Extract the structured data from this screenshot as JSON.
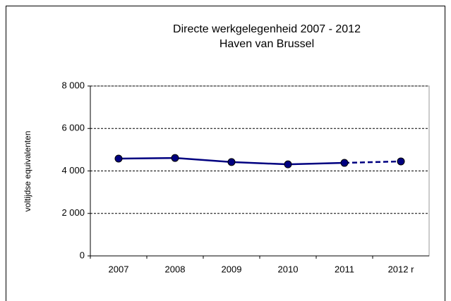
{
  "chart_data": {
    "type": "line",
    "title": "Directe werkgelegenheid  2007  - 2012",
    "subtitle": "Haven van Brussel",
    "y_label": "voltijdse equivalenten",
    "categories": [
      "2007",
      "2008",
      "2009",
      "2010",
      "2011",
      "2012 r"
    ],
    "values": [
      4580,
      4610,
      4420,
      4310,
      4380,
      4450
    ],
    "color": "#000080",
    "dashed_last_segment": true,
    "ylim": [
      0,
      8000
    ],
    "yticks": [
      0,
      {
        "value": 2000,
        "label": "2 000"
      },
      {
        "value": 4000,
        "label": "4 000"
      },
      {
        "value": 6000,
        "label": "6 000"
      },
      {
        "value": 8000,
        "label": "8 000"
      }
    ],
    "grid": true
  }
}
